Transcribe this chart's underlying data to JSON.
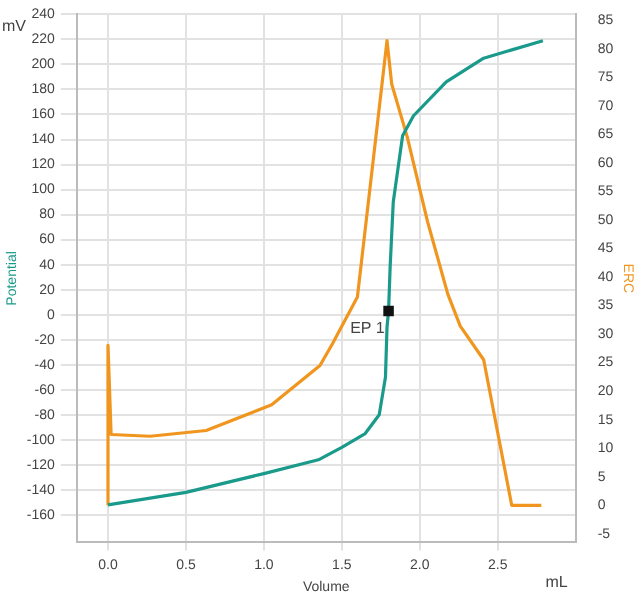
{
  "chart_data": {
    "type": "line",
    "xlabel": "Volume",
    "ylabel": "Potential",
    "y2label": "ERC",
    "xlim": [
      -0.2,
      3.0
    ],
    "xticks": [
      {
        "value": 0,
        "label": "0.0"
      },
      {
        "value": 0.5,
        "label": "0.5"
      },
      {
        "value": 1,
        "label": "1.0"
      },
      {
        "value": 1.5,
        "label": "1.5"
      },
      {
        "value": 2,
        "label": "2.0"
      },
      {
        "value": 2.5,
        "label": "2.5"
      }
    ],
    "ylim": [
      -182,
      240
    ],
    "yticks": [
      -160,
      -140,
      -120,
      -100,
      -80,
      -60,
      -40,
      -20,
      0,
      20,
      40,
      60,
      80,
      100,
      120,
      140,
      160,
      180,
      200,
      220,
      240
    ],
    "y2lim": [
      -6.5,
      86
    ],
    "y2ticks": [
      -5,
      0,
      5,
      10,
      15,
      20,
      25,
      30,
      35,
      40,
      45,
      50,
      55,
      60,
      65,
      70,
      75,
      80,
      85
    ],
    "grid": true,
    "legend": false,
    "marker": "none",
    "line_style": "solid",
    "series": [
      {
        "color": "#1a9a8a",
        "x": [
          0,
          0.5,
          1.0,
          1.35,
          1.5,
          1.65,
          1.74,
          1.78,
          1.79,
          1.8,
          1.81,
          1.83,
          1.89,
          1.96,
          2.17,
          2.41,
          2.79
        ],
        "values": [
          -152,
          -142,
          -127,
          -116,
          -106,
          -95,
          -80,
          -50,
          -10,
          3,
          38,
          90,
          143,
          159,
          186,
          205,
          219
        ]
      },
      {
        "color": "#f0961e",
        "axis": "y2",
        "x": [
          0,
          0,
          0.02,
          0.27,
          0.63,
          1.05,
          1.36,
          1.44,
          1.6,
          1.79,
          1.82,
          1.92,
          2.05,
          2.18,
          2.26,
          2.41,
          2.59,
          2.78
        ],
        "values": [
          0,
          28,
          12.4,
          12.1,
          13.1,
          17.6,
          24.5,
          28.3,
          36.5,
          81.4,
          73.8,
          64.5,
          49.7,
          37,
          31.4,
          25.5,
          0,
          0
        ]
      },
      {
        "type": "scatter",
        "marker": "square",
        "color": "#111111",
        "x": [
          1.8
        ],
        "values": [
          3
        ]
      }
    ],
    "annotations": [
      "mV",
      "mL",
      {
        "text": "EP 1",
        "x": 1.8,
        "y": 3
      }
    ]
  }
}
